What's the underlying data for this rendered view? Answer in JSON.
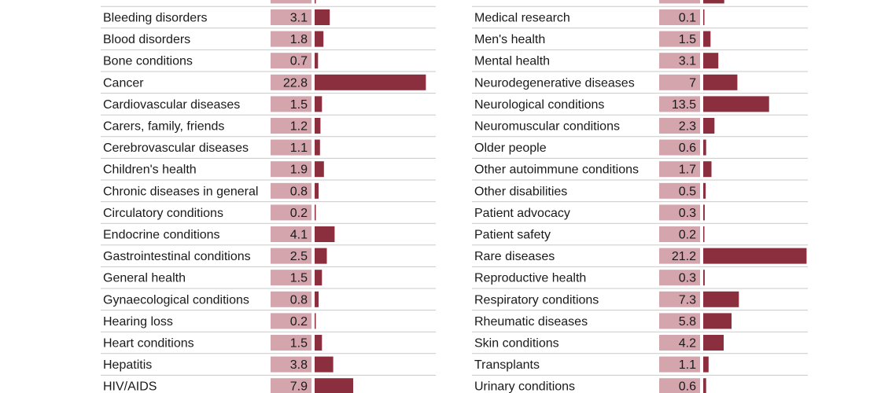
{
  "chart_data": {
    "type": "bar",
    "orientation": "horizontal",
    "value_box_color": "#d4a5ad",
    "bar_color": "#8b2e3d",
    "panels": [
      {
        "categories": [
          "",
          "Bleeding disorders",
          "Blood disorders",
          "Bone conditions",
          "Cancer",
          "Cardiovascular diseases",
          "Carers, family, friends",
          "Cerebrovascular diseases",
          "Children's health",
          "Chronic diseases in general",
          "Circulatory conditions",
          "Endocrine conditions",
          "Gastrointestinal conditions",
          "General health",
          "Gynaecological conditions",
          "Hearing loss",
          "Heart conditions",
          "Hepatitis",
          "HIV/AIDS"
        ],
        "values": [
          0.2,
          3.1,
          1.8,
          0.7,
          22.8,
          1.5,
          1.2,
          1.1,
          1.9,
          0.8,
          0.2,
          4.1,
          2.5,
          1.5,
          0.8,
          0.2,
          1.5,
          3.8,
          7.9
        ]
      },
      {
        "categories": [
          "",
          "Medical research",
          "Men's health",
          "Mental health",
          "Neurodegenerative diseases",
          "Neurological conditions",
          "Neuromuscular conditions",
          "Older people",
          "Other autoimmune conditions",
          "Other disabilities",
          "Patient advocacy",
          "Patient safety",
          "Rare diseases",
          "Reproductive health",
          "Respiratory conditions",
          "Rheumatic diseases",
          "Skin conditions",
          "Transplants",
          "Urinary conditions"
        ],
        "values": [
          4.3,
          0.1,
          1.5,
          3.1,
          7,
          13.5,
          2.3,
          0.6,
          1.7,
          0.5,
          0.3,
          0.2,
          21.2,
          0.3,
          7.3,
          5.8,
          4.2,
          1.1,
          0.6
        ]
      }
    ]
  }
}
